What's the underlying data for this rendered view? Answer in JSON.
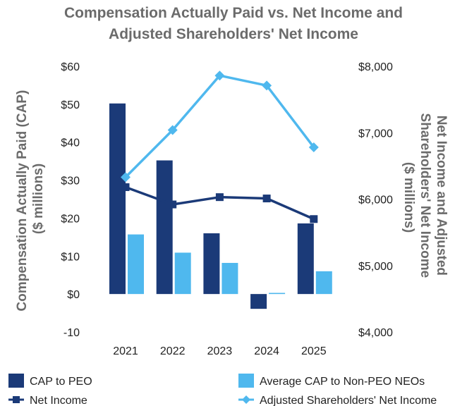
{
  "chart_data": {
    "type": "bar",
    "title_lines": [
      "Compensation Actually Paid vs. Net Income and",
      "Adjusted Shareholders' Net Income"
    ],
    "categories": [
      "2021",
      "2022",
      "2023",
      "2024",
      "2025"
    ],
    "left_axis": {
      "label_lines": [
        "Compensation Actually Paid (CAP)",
        "($ millions)"
      ],
      "ylim": [
        -10,
        60
      ],
      "ticks": [
        -10,
        0,
        10,
        20,
        30,
        40,
        50,
        60
      ],
      "tick_labels": [
        "-10",
        "$0",
        "$10",
        "$20",
        "$30",
        "$40",
        "$50",
        "$60"
      ]
    },
    "right_axis": {
      "label_lines": [
        "Net Income and Adjusted",
        "Shareholders' Net Income",
        "($ millions)"
      ],
      "ylim": [
        4000,
        8000
      ],
      "ticks": [
        4000,
        5000,
        6000,
        7000,
        8000
      ],
      "tick_labels": [
        "$4,000",
        "$5,000",
        "$6,000",
        "$7,000",
        "$8,000"
      ]
    },
    "series": [
      {
        "name": "CAP to PEO",
        "kind": "bar",
        "axis": "left",
        "color": "#1b3a78",
        "values": [
          50.2,
          35.2,
          16.0,
          -3.9,
          18.6
        ]
      },
      {
        "name": "Average CAP to Non-PEO NEOs",
        "kind": "bar",
        "axis": "left",
        "color": "#4fb8ee",
        "values": [
          15.7,
          10.9,
          8.2,
          0.3,
          6.0
        ]
      },
      {
        "name": "Net Income",
        "kind": "line",
        "axis": "right",
        "color": "#1b3a78",
        "marker": "square",
        "values": [
          6180,
          5920,
          6030,
          6010,
          5700
        ]
      },
      {
        "name": "Adjusted Shareholders' Net Income",
        "kind": "line",
        "axis": "right",
        "color": "#4fb8ee",
        "marker": "diamond",
        "values": [
          6330,
          7040,
          7860,
          7710,
          6780
        ]
      }
    ],
    "legend_position": "bottom"
  }
}
